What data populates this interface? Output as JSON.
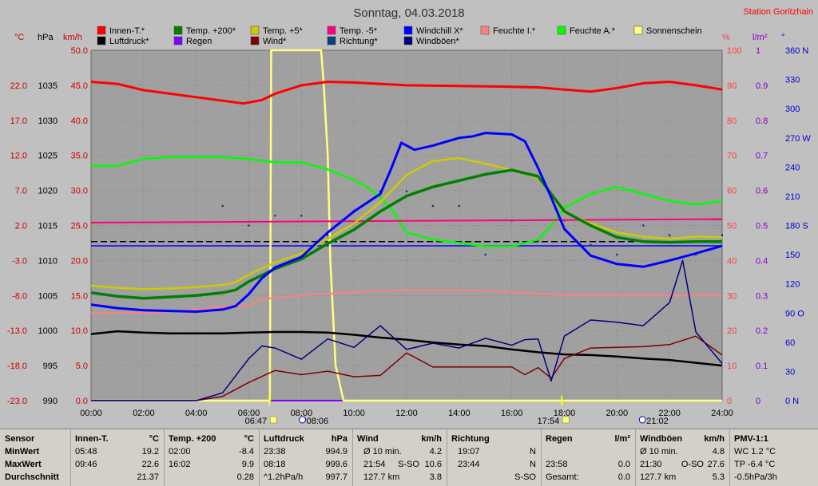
{
  "title": "Sonntag, 04.03.2018",
  "station": "Station Goritzhain",
  "colors": {
    "bg": "#c0c0c0",
    "plot": "#a0a0a0",
    "grid": "#707070",
    "temp_axis": "#cc0000",
    "hpa_axis": "#000000",
    "kmh_axis": "#cc0000",
    "pct_axis": "#ff4040",
    "lm2_axis": "#8800cc",
    "deg_axis": "#0000cc"
  },
  "legend": [
    {
      "label": "Innen-T.*",
      "color": "#ff0000"
    },
    {
      "label": "Temp. +200*",
      "color": "#008000"
    },
    {
      "label": "Temp. +5*",
      "color": "#cccc00"
    },
    {
      "label": "Temp. -5*",
      "color": "#ff0080"
    },
    {
      "label": "Windchill X*",
      "color": "#0000ff"
    },
    {
      "label": "Feuchte I.*",
      "color": "#ff8080"
    },
    {
      "label": "Feuchte A.*",
      "color": "#00ff00"
    },
    {
      "label": "Sonnenschein",
      "color": "#ffff80"
    },
    {
      "label": "Luftdruck*",
      "color": "#000000"
    },
    {
      "label": "Regen",
      "color": "#8000ff"
    },
    {
      "label": "Wind*",
      "color": "#800000"
    },
    {
      "label": "Richtung*",
      "color": "#004080"
    },
    {
      "label": "Windböen*",
      "color": "#000080"
    }
  ],
  "axis_units": {
    "temp": "°C",
    "hpa": "hPa",
    "kmh": "km/h",
    "pct": "%",
    "lm2": "l/m²",
    "deg": "°"
  },
  "chart_data": {
    "type": "line",
    "title": "Sonntag, 04.03.2018",
    "x_range_hours": [
      0,
      24
    ],
    "x_ticks": [
      "00:00",
      "02:00",
      "04:00",
      "06:00",
      "08:00",
      "10:00",
      "12:00",
      "14:00",
      "16:00",
      "18:00",
      "20:00",
      "22:00",
      "24:00"
    ],
    "axes": {
      "temp_c": {
        "range": [
          -23,
          27
        ],
        "ticks": [
          "22.0",
          "17.0",
          "12.0",
          "7.0",
          "2.0",
          "-3.0",
          "-8.0",
          "-13.0",
          "-18.0",
          "-23.0"
        ]
      },
      "pressure_hpa": {
        "range": [
          990,
          1040
        ],
        "ticks": [
          "1035",
          "1030",
          "1025",
          "1020",
          "1015",
          "1010",
          "1005",
          "1000",
          "995",
          "990"
        ]
      },
      "wind_kmh": {
        "range": [
          0,
          50
        ],
        "ticks": [
          "50.0",
          "45.0",
          "40.0",
          "35.0",
          "30.0",
          "25.0",
          "20.0",
          "15.0",
          "10.0",
          "5.0",
          "0.0"
        ]
      },
      "humidity_pct": {
        "range": [
          0,
          100
        ],
        "ticks": [
          "100",
          "90",
          "80",
          "70",
          "60",
          "50",
          "40",
          "30",
          "20",
          "10",
          "0"
        ]
      },
      "rain_lm2": {
        "range": [
          0,
          1
        ],
        "ticks": [
          "1",
          "0.9",
          "0.8",
          "0.7",
          "0.6",
          "0.5",
          "0.4",
          "0.3",
          "0.2",
          "0.1",
          "0"
        ]
      },
      "direction_deg": {
        "range": [
          0,
          360
        ],
        "ticks": [
          "360 N",
          "330",
          "300",
          "270 W",
          "240",
          "210",
          "180 S",
          "150",
          "120",
          "90 O",
          "60",
          "30",
          "0 N"
        ]
      }
    },
    "series": [
      {
        "name": "Innen-T.*",
        "axis": "temp_c",
        "x": [
          0,
          1,
          2,
          3,
          4,
          5,
          5.8,
          6.5,
          7,
          8,
          9,
          10,
          12,
          14,
          16,
          17,
          18,
          19,
          20,
          21,
          22,
          23,
          24
        ],
        "y": [
          22.5,
          22.2,
          21.3,
          20.8,
          20.3,
          19.8,
          19.4,
          19.9,
          20.8,
          22.0,
          22.5,
          22.4,
          22.0,
          21.9,
          21.8,
          21.7,
          21.4,
          21.1,
          21.6,
          22.3,
          22.5,
          22.0,
          21.4
        ]
      },
      {
        "name": "Temp. +200*",
        "axis": "temp_c",
        "x": [
          0,
          1,
          2,
          3,
          4,
          5,
          5.5,
          6,
          7,
          8,
          9,
          10,
          11,
          12,
          13,
          14,
          15,
          16,
          17,
          18,
          19,
          20,
          21,
          22,
          23,
          24
        ],
        "y": [
          -7.6,
          -8.1,
          -8.4,
          -8.2,
          -8.0,
          -7.6,
          -7.2,
          -6.0,
          -4.2,
          -2.8,
          -0.6,
          1.4,
          4.0,
          6.2,
          7.5,
          8.4,
          9.3,
          9.9,
          9.0,
          4.0,
          2.0,
          0.3,
          -0.3,
          -0.4,
          -0.3,
          -0.3
        ]
      },
      {
        "name": "Temp. +5*",
        "axis": "temp_c",
        "x": [
          0,
          1,
          2,
          3,
          4,
          5,
          5.5,
          6,
          7,
          8,
          9,
          10,
          11,
          12,
          13,
          14,
          15,
          16,
          17,
          18,
          19,
          20,
          21,
          22,
          23,
          24
        ],
        "y": [
          -6.6,
          -6.9,
          -7.1,
          -7.0,
          -6.8,
          -6.5,
          -6.1,
          -5.0,
          -3.3,
          -2.0,
          0.1,
          2.3,
          5.3,
          9.2,
          11.2,
          11.6,
          10.8,
          9.9,
          8.8,
          3.8,
          2.3,
          1.0,
          0.4,
          0.1,
          0.4,
          0.3
        ]
      },
      {
        "name": "Temp. -5*",
        "axis": "temp_c",
        "x": [
          0,
          24
        ],
        "y": [
          2.4,
          2.9
        ]
      },
      {
        "name": "Windchill X*",
        "axis": "temp_c",
        "x": [
          0,
          1,
          2,
          3,
          4,
          5,
          5.5,
          6,
          6.5,
          7,
          8,
          9,
          10,
          11,
          11.4,
          11.8,
          12.3,
          13,
          14,
          14.5,
          15,
          16,
          16.5,
          17,
          17.5,
          18,
          19,
          20,
          21,
          22,
          23,
          24
        ],
        "y": [
          -9.3,
          -9.8,
          -10.1,
          -10.2,
          -10.3,
          -10.0,
          -9.5,
          -7.8,
          -5.5,
          -4.0,
          -2.5,
          1.0,
          4.0,
          6.5,
          10.0,
          13.8,
          12.8,
          13.4,
          14.5,
          14.7,
          15.2,
          15.0,
          14.0,
          10.2,
          6.0,
          1.5,
          -2.3,
          -3.5,
          -3.9,
          -3.0,
          -2.0,
          -0.9
        ]
      },
      {
        "name": "Feuchte I.*",
        "axis": "humidity_pct",
        "x": [
          0,
          2,
          4,
          5,
          6,
          6.5,
          8,
          10,
          12,
          14,
          16,
          18,
          20,
          22,
          24
        ],
        "y": [
          25,
          25,
          26,
          27,
          27,
          29,
          30,
          31,
          31.5,
          31.5,
          31,
          30,
          30,
          30,
          30
        ]
      },
      {
        "name": "Feuchte A.*",
        "axis": "humidity_pct",
        "x": [
          0,
          1,
          2,
          3,
          4,
          5,
          6,
          7,
          8,
          9,
          10,
          10.5,
          11,
          11.5,
          12,
          13,
          14,
          15,
          16,
          17,
          17.5,
          18,
          19,
          20,
          21,
          22,
          23,
          24
        ],
        "y": [
          67,
          67,
          69,
          69.5,
          69.5,
          69.5,
          69,
          68,
          68,
          66,
          63,
          61,
          58,
          54,
          48,
          46,
          45,
          44,
          44,
          46,
          50,
          55,
          59,
          61,
          59,
          57,
          56,
          57
        ]
      },
      {
        "name": "Sonnenschein",
        "axis": "wind_kmh",
        "x": [
          0,
          6.8,
          6.85,
          8.75,
          8.85,
          9.0,
          9.1,
          9.3,
          9.6,
          24
        ],
        "y": [
          0,
          0,
          50,
          50,
          45,
          35,
          20,
          5,
          0,
          0
        ]
      },
      {
        "name": "Luftdruck*",
        "axis": "pressure_hpa",
        "x": [
          0,
          1,
          2,
          3,
          4,
          5,
          6,
          7,
          8,
          9,
          10,
          11,
          12,
          13,
          14,
          15,
          16,
          17,
          18,
          19,
          20,
          21,
          22,
          23,
          24
        ],
        "y": [
          999.5,
          999.9,
          999.7,
          999.6,
          999.6,
          999.6,
          999.7,
          999.8,
          999.8,
          999.7,
          999.4,
          999.0,
          998.7,
          998.3,
          998.0,
          997.8,
          997.3,
          996.9,
          996.6,
          996.5,
          996.3,
          996.0,
          995.8,
          995.4,
          995.0
        ]
      },
      {
        "name": "Wind*",
        "axis": "wind_kmh",
        "x": [
          0,
          3,
          4,
          5,
          6,
          7,
          8,
          9,
          10,
          11,
          12,
          13,
          14,
          15,
          16,
          16.5,
          17,
          17.5,
          18,
          19,
          20,
          21,
          22,
          23,
          24
        ],
        "y": [
          0,
          0,
          0,
          0.6,
          2.6,
          4.3,
          3.7,
          4.2,
          3.4,
          3.6,
          6.8,
          4.8,
          4.8,
          4.8,
          4.8,
          3.7,
          4.7,
          3.2,
          6.0,
          7.5,
          7.6,
          7.7,
          8.0,
          9.2,
          6.5
        ]
      },
      {
        "name": "Windböen*",
        "axis": "wind_kmh",
        "x": [
          0,
          3,
          4,
          5,
          6,
          6.5,
          7,
          8,
          9,
          10,
          11,
          12,
          13,
          14,
          15,
          16,
          16.5,
          17,
          17.5,
          18,
          19,
          20,
          21,
          22,
          22.5,
          23,
          24
        ],
        "y": [
          0,
          0,
          0,
          1.1,
          6.0,
          7.8,
          7.5,
          5.9,
          8.8,
          7.6,
          10.7,
          7.3,
          8.2,
          7.5,
          8.9,
          7.9,
          8.7,
          8.8,
          2.8,
          9.2,
          11.5,
          11.2,
          10.7,
          14.0,
          20.0,
          9.8,
          5.3
        ]
      },
      {
        "name": "Richtung*",
        "axis": "direction_deg",
        "x": [
          5,
          6,
          7,
          8,
          9,
          10,
          11,
          12,
          13,
          14,
          15,
          16,
          17,
          18,
          19,
          20,
          21,
          22,
          23,
          24
        ],
        "y": [
          200,
          180,
          190,
          190,
          170,
          195,
          215,
          215,
          200,
          200,
          150,
          185,
          165,
          185,
          160,
          150,
          180,
          170,
          150,
          170
        ]
      },
      {
        "name": "Regen",
        "axis": "rain_lm2",
        "x": [
          0,
          24
        ],
        "y": [
          0,
          0
        ]
      }
    ],
    "reference_lines": [
      {
        "axis": "temp_c",
        "value": -0.3,
        "color": "#000000",
        "style": "dashed"
      },
      {
        "axis": "temp_c",
        "value": -0.9,
        "color": "#0000ff",
        "style": "solid"
      }
    ]
  },
  "markers": [
    {
      "hour": 6.78,
      "label": "06:47",
      "type": "sunrise"
    },
    {
      "hour": 8.1,
      "label": "08:06",
      "type": "moon"
    },
    {
      "hour": 17.9,
      "label": "17:54",
      "type": "sunset"
    },
    {
      "hour": 21.03,
      "label": "21:02",
      "type": "moon"
    }
  ],
  "stats": {
    "sensor": {
      "title": "Sensor",
      "rows": [
        "MinWert",
        "MaxWert",
        "Durchschnitt"
      ]
    },
    "innen": {
      "title": "Innen-T.",
      "unit": "°C",
      "rows": [
        [
          "05:48",
          "19.2"
        ],
        [
          "09:46",
          "22.6"
        ],
        [
          "",
          "21.37"
        ]
      ]
    },
    "temp200": {
      "title": "Temp. +200",
      "unit": "°C",
      "rows": [
        [
          "02:00",
          "-8.4"
        ],
        [
          "16:02",
          "9.9"
        ],
        [
          "",
          "0.28"
        ]
      ]
    },
    "luftdruck": {
      "title": "Luftdruck",
      "unit": "hPa",
      "rows": [
        [
          "23:38",
          "994.9"
        ],
        [
          "08:18",
          "999.6"
        ],
        [
          "^1.2hPa/h",
          "997.7"
        ]
      ]
    },
    "wind": {
      "title": "Wind",
      "unit": "km/h",
      "rows": [
        [
          "Ø 10 min.",
          "",
          "4.2"
        ],
        [
          "21:54",
          "S-SO",
          "10.6"
        ],
        [
          "127.7 km",
          "",
          "3.8"
        ]
      ]
    },
    "richtung": {
      "title": "Richtung",
      "unit": "",
      "rows": [
        [
          "19:07",
          "N"
        ],
        [
          "23:44",
          "N"
        ],
        [
          "",
          "S-SO"
        ]
      ]
    },
    "regen": {
      "title": "Regen",
      "unit": "l/m²",
      "rows": [
        [
          "",
          ""
        ],
        [
          "23:58",
          "0.0"
        ],
        [
          "Gesamt:",
          "0.0"
        ]
      ]
    },
    "windboeen": {
      "title": "Windböen",
      "unit": "km/h",
      "rows": [
        [
          "Ø 10 min.",
          "",
          "4.8"
        ],
        [
          "21:30",
          "O-SO",
          "27.6"
        ],
        [
          "127.7 km",
          "",
          "5.3"
        ]
      ]
    },
    "pmv": {
      "title": "PMV-1:1",
      "rows": [
        "WC 1.2 °C",
        "TP -6.4 °C",
        "-0.5hPa/3h"
      ]
    }
  }
}
